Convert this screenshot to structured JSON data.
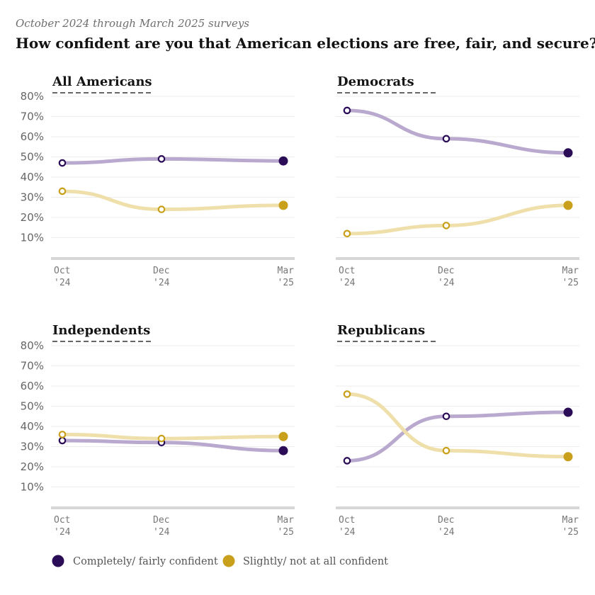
{
  "subtitle": "October 2024 through March 2025 surveys",
  "title": "How confident are you that American elections are free, fair, and secure?",
  "colors": {
    "confident_dot": "#2b0c57",
    "confident_line": "#b9a9cf",
    "not_confident_dot": "#c9a01c",
    "not_confident_line": "#efdfaa",
    "grid": "#ececec",
    "axis": "#d6d6d6",
    "title_underline": "#333333"
  },
  "legend": [
    {
      "label": "Completely/ fairly confident",
      "color": "#2b0c57"
    },
    {
      "label": "Slightly/ not at all confident",
      "color": "#c9a01c"
    }
  ],
  "chart_data": [
    {
      "type": "line",
      "title": "All Americans",
      "x": [
        "Oct '24",
        "Dec '24",
        "Mar '25"
      ],
      "x_tick_labels": [
        [
          "Oct",
          "'24"
        ],
        [
          "Dec",
          "'24"
        ],
        [
          "Mar",
          "'25"
        ]
      ],
      "y_tick_labels": [
        "80%",
        "70%",
        "60%",
        "50%",
        "40%",
        "30%",
        "20%",
        "10%"
      ],
      "ylim": [
        0,
        80
      ],
      "grid": true,
      "series": [
        {
          "name": "Completely/ fairly confident",
          "values": [
            47,
            49,
            48
          ]
        },
        {
          "name": "Slightly/ not at all confident",
          "values": [
            33,
            24,
            26
          ]
        }
      ]
    },
    {
      "type": "line",
      "title": "Democrats",
      "x": [
        "Oct '24",
        "Dec '24",
        "Mar '25"
      ],
      "x_tick_labels": [
        [
          "Oct",
          "'24"
        ],
        [
          "Dec",
          "'24"
        ],
        [
          "Mar",
          "'25"
        ]
      ],
      "y_tick_labels": [],
      "ylim": [
        0,
        80
      ],
      "grid": true,
      "series": [
        {
          "name": "Completely/ fairly confident",
          "values": [
            73,
            59,
            52
          ]
        },
        {
          "name": "Slightly/ not at all confident",
          "values": [
            12,
            16,
            26
          ]
        }
      ]
    },
    {
      "type": "line",
      "title": "Independents",
      "x": [
        "Oct '24",
        "Dec '24",
        "Mar '25"
      ],
      "x_tick_labels": [
        [
          "Oct",
          "'24"
        ],
        [
          "Dec",
          "'24"
        ],
        [
          "Mar",
          "'25"
        ]
      ],
      "y_tick_labels": [
        "80%",
        "70%",
        "60%",
        "50%",
        "40%",
        "30%",
        "20%",
        "10%"
      ],
      "ylim": [
        0,
        80
      ],
      "grid": true,
      "series": [
        {
          "name": "Completely/ fairly confident",
          "values": [
            33,
            32,
            28
          ]
        },
        {
          "name": "Slightly/ not at all confident",
          "values": [
            36,
            34,
            35
          ]
        }
      ]
    },
    {
      "type": "line",
      "title": "Republicans",
      "x": [
        "Oct '24",
        "Dec '24",
        "Mar '25"
      ],
      "x_tick_labels": [
        [
          "Oct",
          "'24"
        ],
        [
          "Dec",
          "'24"
        ],
        [
          "Mar",
          "'25"
        ]
      ],
      "y_tick_labels": [],
      "ylim": [
        0,
        80
      ],
      "grid": true,
      "series": [
        {
          "name": "Completely/ fairly confident",
          "values": [
            23,
            45,
            47
          ]
        },
        {
          "name": "Slightly/ not at all confident",
          "values": [
            56,
            28,
            25
          ]
        }
      ]
    }
  ]
}
